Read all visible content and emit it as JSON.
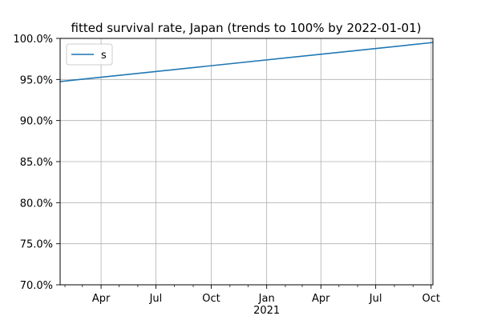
{
  "chart_data": {
    "type": "line",
    "title": "fitted survival rate, Japan (trends to 100% by 2022-01-01)",
    "xlabel": "",
    "ylabel": "",
    "xlim": [
      "2020-01-24",
      "2021-10-04"
    ],
    "ylim": [
      70.0,
      100.0
    ],
    "y_unit": "%",
    "grid": true,
    "legend_position": "upper-left",
    "x_ticks": [
      {
        "date": "2020-04-01",
        "label": "Apr"
      },
      {
        "date": "2020-07-01",
        "label": "Jul"
      },
      {
        "date": "2020-10-01",
        "label": "Oct"
      },
      {
        "date": "2021-01-01",
        "label": "Jan"
      },
      {
        "date": "2021-04-01",
        "label": "Apr"
      },
      {
        "date": "2021-07-01",
        "label": "Jul"
      },
      {
        "date": "2021-10-01",
        "label": "Oct"
      }
    ],
    "x_year_label": {
      "date": "2021-01-01",
      "label": "2021"
    },
    "x_minor_tick_dates": [
      "2020-02-01",
      "2020-03-01",
      "2020-05-01",
      "2020-06-01",
      "2020-08-01",
      "2020-09-01",
      "2020-11-01",
      "2020-12-01",
      "2021-02-01",
      "2021-03-01",
      "2021-05-01",
      "2021-06-01",
      "2021-08-01",
      "2021-09-01"
    ],
    "y_ticks": [
      {
        "value": 70.0,
        "label": "70.0%"
      },
      {
        "value": 75.0,
        "label": "75.0%"
      },
      {
        "value": 80.0,
        "label": "80.0%"
      },
      {
        "value": 85.0,
        "label": "85.0%"
      },
      {
        "value": 90.0,
        "label": "90.0%"
      },
      {
        "value": 95.0,
        "label": "95.0%"
      },
      {
        "value": 100.0,
        "label": "100.0%"
      }
    ],
    "series": [
      {
        "name": "s",
        "color": "#1f77b4",
        "x": [
          "2020-01-24",
          "2021-10-04"
        ],
        "y": [
          94.75,
          99.5
        ]
      }
    ]
  }
}
